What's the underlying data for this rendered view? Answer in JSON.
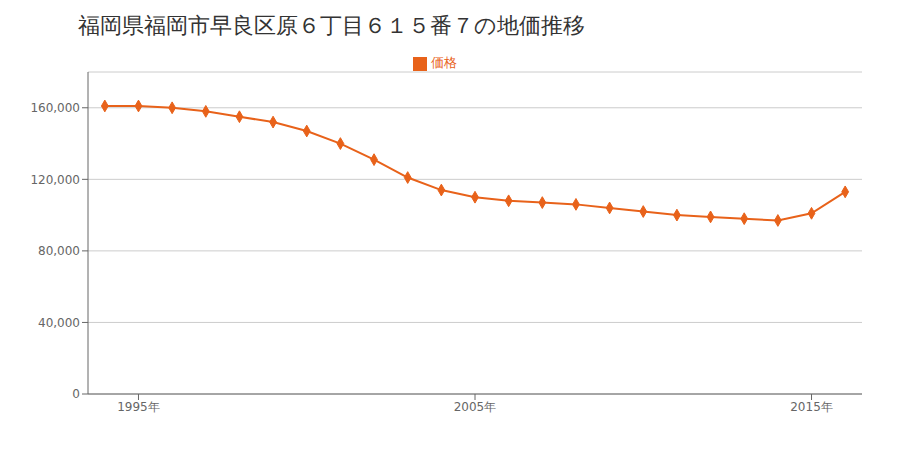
{
  "chart_data": {
    "type": "line",
    "title": "福岡県福岡市早良区原６丁目６１５番７の地価推移",
    "x": [
      1994,
      1995,
      1996,
      1997,
      1998,
      1999,
      2000,
      2001,
      2002,
      2003,
      2004,
      2005,
      2006,
      2007,
      2008,
      2009,
      2010,
      2011,
      2012,
      2013,
      2014,
      2015,
      2016
    ],
    "series": [
      {
        "name": "価格",
        "color": "#e8621a",
        "marker": "diamond",
        "values": [
          161000,
          161000,
          160000,
          158000,
          155000,
          152000,
          147000,
          140000,
          131000,
          121000,
          114000,
          110000,
          108000,
          107000,
          106000,
          104000,
          102000,
          100000,
          99000,
          98000,
          97000,
          101000,
          113000
        ]
      }
    ],
    "xlim": [
      1993.5,
      2016.5
    ],
    "xticks": [
      {
        "value": 1995,
        "label": "1995年"
      },
      {
        "value": 2005,
        "label": "2005年"
      },
      {
        "value": 2015,
        "label": "2015年"
      }
    ],
    "ylim": [
      0,
      180000
    ],
    "yticks": [
      0,
      {
        "value": 40000,
        "label": "40,000"
      },
      {
        "value": 80000,
        "label": "80,000"
      },
      {
        "value": 120000,
        "label": "120,000"
      },
      {
        "value": 160000,
        "label": "160,000"
      }
    ],
    "grid": "y",
    "legend": "top"
  }
}
